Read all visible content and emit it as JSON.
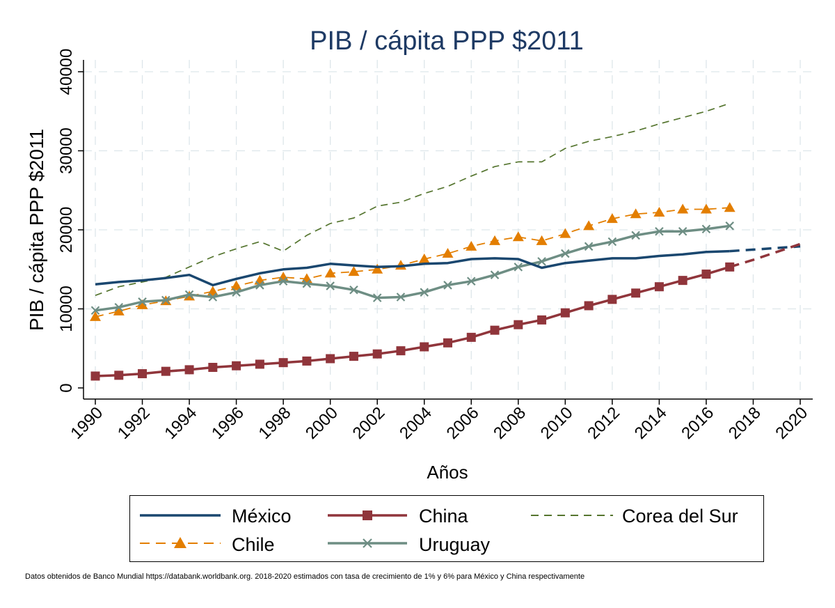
{
  "chart_data": {
    "type": "line",
    "title": "PIB / cápita PPP $2011",
    "xlabel": "Años",
    "ylabel": "PIB / cápita PPP $2011",
    "xlim": [
      1990,
      2020
    ],
    "ylim": [
      0,
      40000
    ],
    "x_ticks": [
      "1990",
      "1992",
      "1994",
      "1996",
      "1998",
      "2000",
      "2002",
      "2004",
      "2006",
      "2008",
      "2010",
      "2012",
      "2014",
      "2016",
      "2018",
      "2020"
    ],
    "y_ticks": [
      "0",
      "10000",
      "20000",
      "30000",
      "40000"
    ],
    "grid": true,
    "legend_position": "bottom",
    "x": [
      1990,
      1991,
      1992,
      1993,
      1994,
      1995,
      1996,
      1997,
      1998,
      1999,
      2000,
      2001,
      2002,
      2003,
      2004,
      2005,
      2006,
      2007,
      2008,
      2009,
      2010,
      2011,
      2012,
      2013,
      2014,
      2015,
      2016,
      2017
    ],
    "series": [
      {
        "name": "México",
        "color": "#1a476f",
        "style": "solid",
        "marker": "none",
        "values": [
          13100,
          13400,
          13600,
          13900,
          14300,
          13000,
          13800,
          14500,
          15000,
          15200,
          15700,
          15500,
          15300,
          15400,
          15700,
          15800,
          16300,
          16400,
          16300,
          15200,
          15800,
          16100,
          16400,
          16400,
          16700,
          16900,
          17200,
          17300
        ],
        "projection_color": "#1a476f",
        "projection": [
          [
            2017,
            17300
          ],
          [
            2018,
            17500
          ],
          [
            2019,
            17700
          ],
          [
            2020,
            17900
          ]
        ]
      },
      {
        "name": "China",
        "color": "#90353b",
        "style": "solid",
        "marker": "square",
        "values": [
          1500,
          1600,
          1800,
          2100,
          2300,
          2600,
          2800,
          3000,
          3200,
          3400,
          3700,
          4000,
          4300,
          4700,
          5200,
          5700,
          6400,
          7300,
          8000,
          8600,
          9500,
          10400,
          11200,
          12000,
          12800,
          13600,
          14400,
          15300
        ],
        "projection_color": "#90353b",
        "projection": [
          [
            2017,
            15300
          ],
          [
            2018,
            16200
          ],
          [
            2019,
            17200
          ],
          [
            2020,
            18200
          ]
        ]
      },
      {
        "name": "Corea del Sur",
        "color": "#55752f",
        "style": "dashed",
        "marker": "none",
        "values": [
          11700,
          12800,
          13400,
          14000,
          15300,
          16600,
          17600,
          18500,
          17300,
          19300,
          20800,
          21500,
          23000,
          23500,
          24600,
          25500,
          26800,
          28000,
          28600,
          28600,
          30300,
          31200,
          31800,
          32500,
          33400,
          34200,
          35000,
          36000
        ]
      },
      {
        "name": "Chile",
        "color": "#e37e00",
        "style": "dashed",
        "marker": "triangle",
        "values": [
          9000,
          9700,
          10500,
          11000,
          11600,
          12200,
          12900,
          13600,
          14000,
          13800,
          14500,
          14700,
          15000,
          15500,
          16300,
          17000,
          17900,
          18600,
          19100,
          18600,
          19500,
          20500,
          21400,
          22000,
          22200,
          22600,
          22600,
          22800
        ]
      },
      {
        "name": "Uruguay",
        "color": "#6e8e84",
        "style": "solid",
        "marker": "x",
        "values": [
          9800,
          10200,
          10900,
          11100,
          11800,
          11500,
          12100,
          13000,
          13500,
          13200,
          12900,
          12400,
          11400,
          11500,
          12100,
          13000,
          13500,
          14300,
          15300,
          16000,
          17000,
          17900,
          18500,
          19300,
          19800,
          19800,
          20100,
          20500
        ]
      }
    ],
    "legend": {
      "row1": [
        "México",
        "China",
        "Corea del Sur"
      ],
      "row2": [
        "Chile",
        "Uruguay"
      ]
    },
    "footnote": "Datos obtenidos de Banco Mundial https://databank.worldbank.org. 2018-2020 estimados con tasa de crecimiento de 1% y 6% para México y China respectivamente"
  }
}
